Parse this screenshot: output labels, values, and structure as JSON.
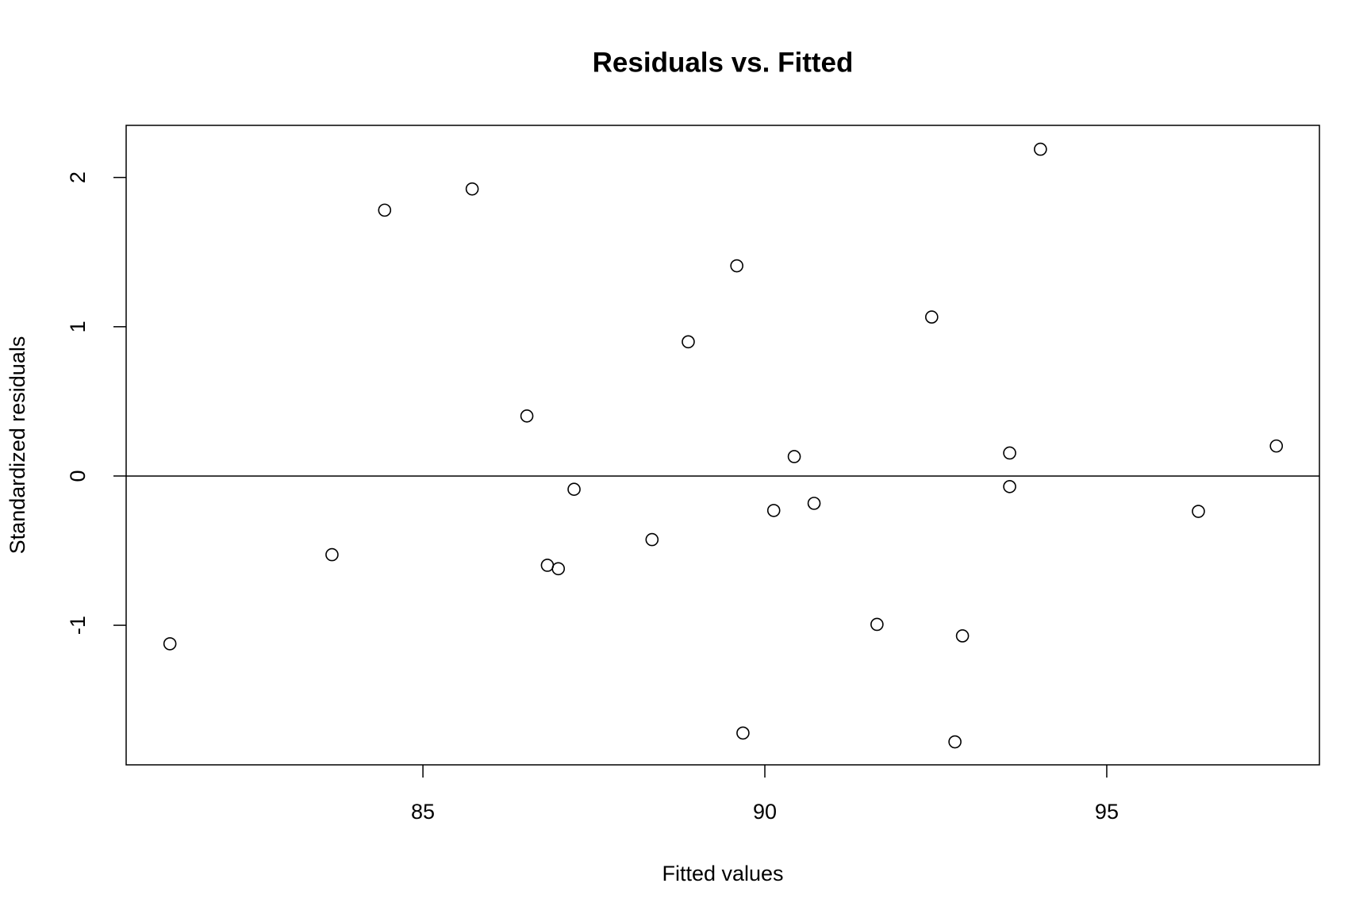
{
  "chart_data": {
    "type": "scatter",
    "title": "Residuals vs. Fitted",
    "x_label": "Fitted values",
    "y_label": "Standardized residuals",
    "x": [
      81.3,
      83.67,
      84.44,
      85.72,
      86.52,
      86.82,
      86.98,
      87.21,
      88.35,
      88.88,
      89.59,
      89.68,
      90.13,
      90.43,
      90.72,
      91.64,
      92.44,
      92.78,
      92.89,
      93.58,
      93.58,
      94.03,
      96.34,
      97.48
    ],
    "values": [
      -1.124,
      -0.527,
      1.781,
      1.923,
      0.402,
      -0.598,
      -0.621,
      -0.089,
      -0.426,
      0.899,
      1.408,
      -1.722,
      -0.231,
      0.13,
      -0.183,
      -0.994,
      1.065,
      -1.781,
      -1.071,
      0.154,
      -0.071,
      2.189,
      -0.237,
      0.201
    ],
    "xlim": [
      80.66,
      98.11
    ],
    "ylim": [
      -1.935,
      2.349
    ],
    "xticks": [
      85,
      90,
      95
    ],
    "yticks": [
      -1,
      0,
      1,
      2
    ],
    "hline": 0,
    "color": "#000000",
    "grid": false
  }
}
